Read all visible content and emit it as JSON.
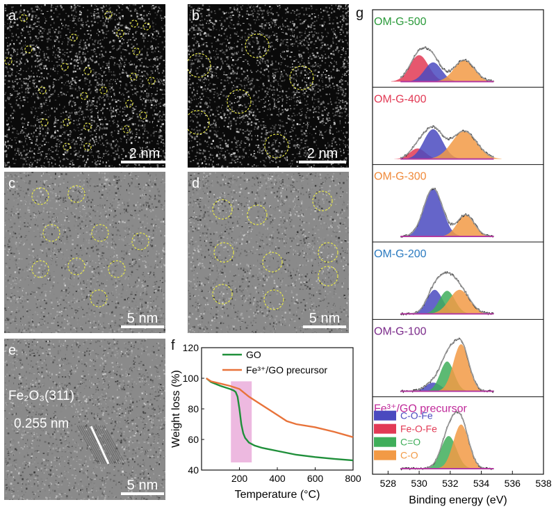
{
  "panels": {
    "a": {
      "letter": "a",
      "scale": "2 nm"
    },
    "b": {
      "letter": "b",
      "scale": "2 nm"
    },
    "c": {
      "letter": "c",
      "scale": "5 nm"
    },
    "d": {
      "letter": "d",
      "scale": "5 nm"
    },
    "e": {
      "letter": "e",
      "scale": "5 nm",
      "annotation_lattice": "Fe₂O₃(311)",
      "annotation_spacing": "0.255 nm"
    },
    "f": {
      "letter": "f"
    },
    "g": {
      "letter": "g"
    }
  },
  "colors": {
    "circle": "#e8e84a",
    "go": "#1f8f3a",
    "precursor": "#e8733a",
    "highlight": "#e8a8d8",
    "c_o_fe": "#4a4abf",
    "fe_o_fe": "#e23a55",
    "c_eq_o": "#3fae5a",
    "c_o": "#f29a45",
    "baseline": "#b23aa0"
  },
  "chart_data": [
    {
      "type": "line",
      "panel": "f",
      "xlabel": "Temperature (°C)",
      "ylabel": "Weight loss (%)",
      "xlim": [
        0,
        800
      ],
      "ylim": [
        40,
        120
      ],
      "xticks": [
        200,
        400,
        600,
        800
      ],
      "yticks": [
        40,
        60,
        80,
        100,
        120
      ],
      "legend": "top-right",
      "highlight_x": [
        155,
        265
      ],
      "series": [
        {
          "name": "GO",
          "color": "#1f8f3a",
          "x": [
            25,
            50,
            100,
            150,
            170,
            180,
            190,
            200,
            210,
            220,
            230,
            250,
            280,
            320,
            400,
            500,
            600,
            700,
            800
          ],
          "y": [
            100,
            97.5,
            95,
            93,
            92,
            91,
            88,
            80,
            70,
            64,
            61,
            58,
            56,
            54.5,
            52.5,
            50,
            48.5,
            47.3,
            46.3
          ]
        },
        {
          "name": "Fe³⁺/GO precursor",
          "color": "#e8733a",
          "x": [
            25,
            50,
            100,
            150,
            200,
            250,
            300,
            350,
            400,
            450,
            500,
            600,
            700,
            800
          ],
          "y": [
            100,
            98,
            96.5,
            95,
            93,
            88,
            84,
            80,
            76,
            72,
            70,
            68,
            65,
            61.5
          ]
        }
      ]
    },
    {
      "type": "area",
      "panel": "g",
      "xlabel": "Binding energy (eV)",
      "xlim": [
        527,
        538
      ],
      "xticks": [
        528,
        530,
        532,
        534,
        536,
        538
      ],
      "legend": [
        {
          "name": "C-O-Fe",
          "color": "#4a4abf"
        },
        {
          "name": "Fe-O-Fe",
          "color": "#e23a55"
        },
        {
          "name": "C=O",
          "color": "#3fae5a"
        },
        {
          "name": "C-O",
          "color": "#f29a45"
        }
      ],
      "spectra": [
        {
          "label": "OM-G-500",
          "label_color": "#2a9a3a",
          "peaks": [
            {
              "comp": "fe_o_fe",
              "center": 530.0,
              "height": 0.55,
              "width": 0.6
            },
            {
              "comp": "c_o_fe",
              "center": 530.9,
              "height": 0.4,
              "width": 0.55
            },
            {
              "comp": "c_o",
              "center": 532.9,
              "height": 0.45,
              "width": 0.65
            }
          ]
        },
        {
          "label": "OM-G-400",
          "label_color": "#e23a55",
          "peaks": [
            {
              "comp": "fe_o_fe",
              "center": 529.9,
              "height": 0.22,
              "width": 0.5
            },
            {
              "comp": "c_o_fe",
              "center": 530.9,
              "height": 0.62,
              "width": 0.6
            },
            {
              "comp": "c_o",
              "center": 532.9,
              "height": 0.58,
              "width": 0.8
            }
          ]
        },
        {
          "label": "OM-G-300",
          "label_color": "#f08a3a",
          "peaks": [
            {
              "comp": "c_o_fe",
              "center": 530.9,
              "height": 1.0,
              "width": 0.6
            },
            {
              "comp": "c_o",
              "center": 533.0,
              "height": 0.45,
              "width": 0.55
            }
          ]
        },
        {
          "label": "OM-G-200",
          "label_color": "#2a7ac0",
          "peaks": [
            {
              "comp": "c_o_fe",
              "center": 531.0,
              "height": 0.5,
              "width": 0.5
            },
            {
              "comp": "c_eq_o",
              "center": 531.8,
              "height": 0.48,
              "width": 0.5
            },
            {
              "comp": "c_o",
              "center": 532.6,
              "height": 0.5,
              "width": 0.65
            }
          ]
        },
        {
          "label": "OM-G-100",
          "label_color": "#7a2a8a",
          "peaks": [
            {
              "comp": "c_o_fe",
              "center": 530.9,
              "height": 0.18,
              "width": 0.5
            },
            {
              "comp": "c_eq_o",
              "center": 531.8,
              "height": 0.62,
              "width": 0.45
            },
            {
              "comp": "c_o",
              "center": 532.7,
              "height": 0.98,
              "width": 0.5
            }
          ]
        },
        {
          "label": "Fe³⁺/GO precursor",
          "label_color": "#c02a9a",
          "peaks": [
            {
              "comp": "c_eq_o",
              "center": 531.9,
              "height": 0.68,
              "width": 0.5
            },
            {
              "comp": "c_o",
              "center": 532.7,
              "height": 0.92,
              "width": 0.5
            }
          ]
        }
      ]
    }
  ]
}
